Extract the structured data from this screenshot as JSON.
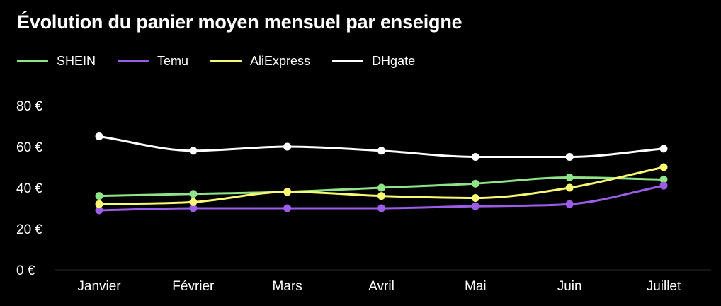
{
  "chart_data": {
    "type": "line",
    "title": "Évolution du panier moyen mensuel par enseigne",
    "categories": [
      "Janvier",
      "Février",
      "Mars",
      "Avril",
      "Mai",
      "Juin",
      "Juillet"
    ],
    "series": [
      {
        "name": "SHEIN",
        "color": "#8fe388",
        "values": [
          36,
          37,
          38,
          40,
          42,
          45,
          44
        ]
      },
      {
        "name": "Temu",
        "color": "#9b5de5",
        "values": [
          29,
          30,
          30,
          30,
          31,
          32,
          41
        ]
      },
      {
        "name": "AliExpress",
        "color": "#f9f871",
        "values": [
          32,
          33,
          38,
          36,
          35,
          40,
          50
        ]
      },
      {
        "name": "DHgate",
        "color": "#ffffff",
        "values": [
          65,
          58,
          60,
          58,
          55,
          55,
          59
        ]
      }
    ],
    "y_ticks": [
      "0 €",
      "20 €",
      "40 €",
      "60 €",
      "80 €"
    ],
    "ylim": [
      0,
      80
    ],
    "xlabel": "",
    "ylabel": "",
    "grid": false,
    "legend_position": "top-left"
  }
}
